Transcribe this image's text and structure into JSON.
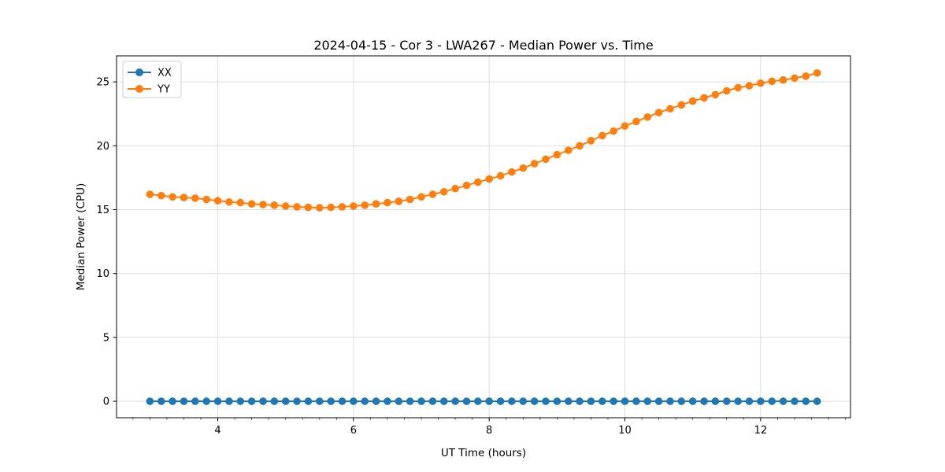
{
  "chart_data": {
    "type": "line",
    "title": "2024-04-15 - Cor 3 - LWA267 - Median Power vs. Time",
    "xlabel": "UT Time (hours)",
    "ylabel": "Median Power (CPU)",
    "xlim": [
      2.508,
      13.325
    ],
    "ylim": [
      -1.288,
      27.04
    ],
    "x_ticks": [
      4,
      6,
      8,
      10,
      12
    ],
    "y_ticks": [
      0,
      5,
      10,
      15,
      20,
      25
    ],
    "x_minor_tick_step": 0.25,
    "grid": true,
    "legend_position": "upper left",
    "background": "#ffffff",
    "x": [
      3.0,
      3.167,
      3.333,
      3.5,
      3.667,
      3.833,
      4.0,
      4.167,
      4.333,
      4.5,
      4.667,
      4.833,
      5.0,
      5.167,
      5.333,
      5.5,
      5.667,
      5.833,
      6.0,
      6.167,
      6.333,
      6.5,
      6.667,
      6.833,
      7.0,
      7.167,
      7.333,
      7.5,
      7.667,
      7.833,
      8.0,
      8.167,
      8.333,
      8.5,
      8.667,
      8.833,
      9.0,
      9.167,
      9.333,
      9.5,
      9.667,
      9.833,
      10.0,
      10.167,
      10.333,
      10.5,
      10.667,
      10.833,
      11.0,
      11.167,
      11.333,
      11.5,
      11.667,
      11.833,
      12.0,
      12.167,
      12.333,
      12.5,
      12.667,
      12.833
    ],
    "series": [
      {
        "name": "XX",
        "color": "#1f77b4",
        "values": [
          0,
          0,
          0,
          0,
          0,
          0,
          0,
          0,
          0,
          0,
          0,
          0,
          0,
          0,
          0,
          0,
          0,
          0,
          0,
          0,
          0,
          0,
          0,
          0,
          0,
          0,
          0,
          0,
          0,
          0,
          0,
          0,
          0,
          0,
          0,
          0,
          0,
          0,
          0,
          0,
          0,
          0,
          0,
          0,
          0,
          0,
          0,
          0,
          0,
          0,
          0,
          0,
          0,
          0,
          0,
          0,
          0,
          0,
          0,
          0
        ]
      },
      {
        "name": "YY",
        "color": "#ff7f0e",
        "values": [
          16.2,
          16.1,
          16.0,
          15.95,
          15.9,
          15.8,
          15.7,
          15.6,
          15.55,
          15.45,
          15.4,
          15.35,
          15.28,
          15.22,
          15.18,
          15.15,
          15.18,
          15.22,
          15.28,
          15.35,
          15.45,
          15.55,
          15.65,
          15.8,
          16.0,
          16.2,
          16.4,
          16.65,
          16.9,
          17.15,
          17.4,
          17.65,
          17.95,
          18.25,
          18.6,
          18.95,
          19.3,
          19.65,
          20.0,
          20.4,
          20.8,
          21.15,
          21.55,
          21.9,
          22.25,
          22.6,
          22.9,
          23.2,
          23.5,
          23.75,
          24.0,
          24.3,
          24.55,
          24.7,
          24.9,
          25.05,
          25.15,
          25.3,
          25.45,
          25.7
        ]
      }
    ],
    "legend": {
      "labels": [
        "XX",
        "YY"
      ]
    }
  }
}
